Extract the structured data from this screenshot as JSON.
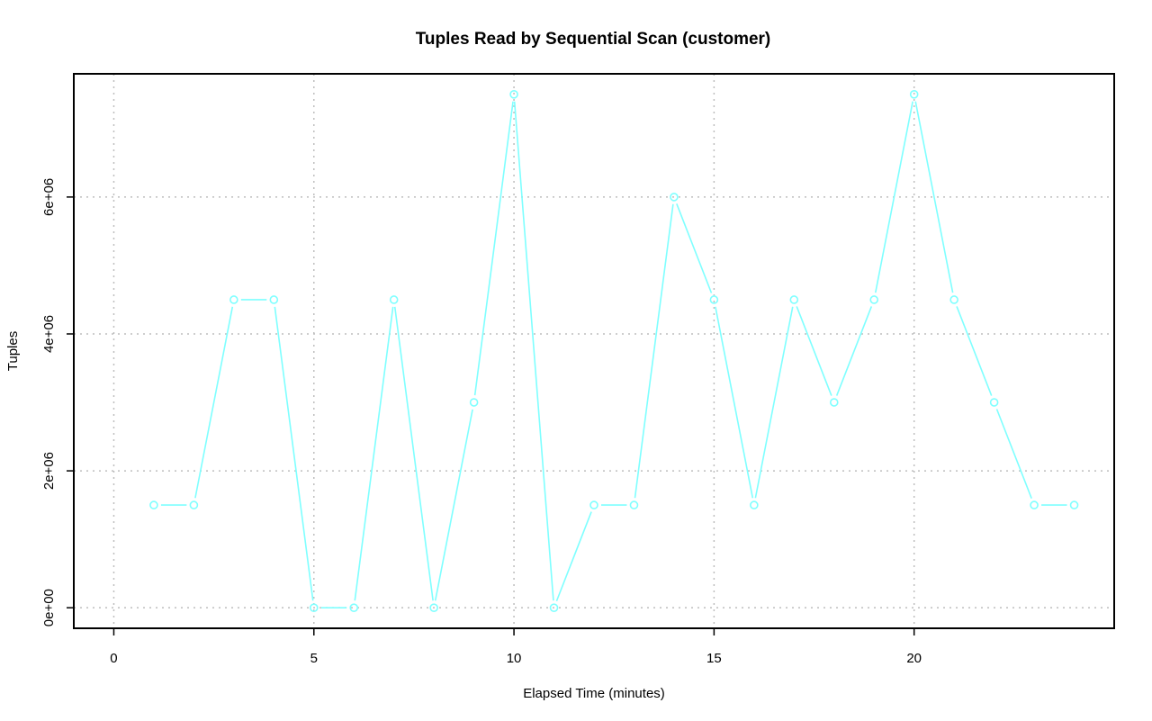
{
  "chart_data": {
    "type": "line",
    "title": "Tuples Read by Sequential Scan (customer)",
    "xlabel": "Elapsed Time (minutes)",
    "ylabel": "Tuples",
    "xlim": [
      -1,
      25
    ],
    "ylim": [
      -300000,
      7800000
    ],
    "x_ticks": [
      0,
      5,
      10,
      15,
      20
    ],
    "x_tick_labels": [
      "0",
      "5",
      "10",
      "15",
      "20"
    ],
    "y_ticks": [
      0,
      2000000,
      4000000,
      6000000
    ],
    "y_tick_labels": [
      "0e+00",
      "2e+06",
      "4e+06",
      "6e+06"
    ],
    "grid": true,
    "series_color": "#7fffff",
    "marker": "open-circle",
    "x": [
      1,
      2,
      3,
      4,
      5,
      6,
      7,
      8,
      9,
      10,
      11,
      12,
      13,
      14,
      15,
      16,
      17,
      18,
      19,
      20,
      21,
      22,
      23,
      24
    ],
    "y": [
      1500000,
      1500000,
      4500000,
      4500000,
      0,
      0,
      4500000,
      0,
      3000000,
      7500000,
      0,
      1500000,
      1500000,
      6000000,
      4500000,
      1500000,
      4500000,
      3000000,
      4500000,
      7500000,
      4500000,
      3000000,
      1500000,
      1500000
    ]
  }
}
